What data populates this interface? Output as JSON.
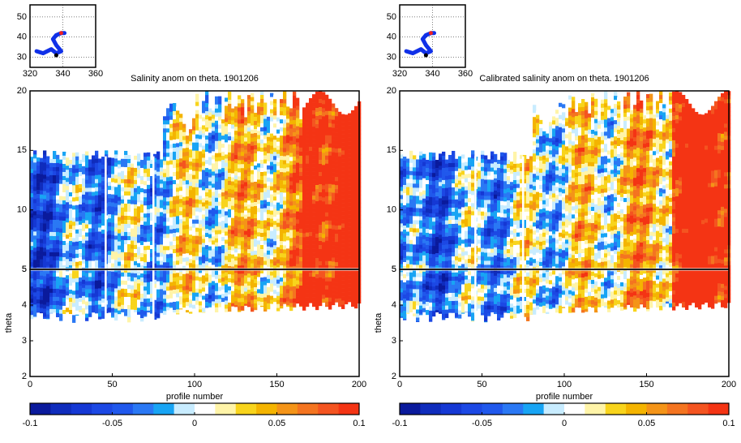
{
  "chart_data": [
    {
      "type": "contour",
      "title": "Salinity anom on theta.    1901206",
      "inset": {
        "xlim": [
          320,
          360
        ],
        "ylim": [
          25,
          56
        ],
        "xticks": [
          320,
          340,
          360
        ],
        "yticks": [
          30,
          40,
          50
        ]
      },
      "upper": {
        "xlim": [
          0,
          200
        ],
        "ylim": [
          5,
          20
        ],
        "yticks": [
          5,
          10,
          15,
          20
        ]
      },
      "lower": {
        "xlim": [
          0,
          200
        ],
        "ylim": [
          2,
          5
        ],
        "xticks": [
          0,
          50,
          100,
          150,
          200
        ],
        "yticks": [
          2,
          3,
          4,
          5
        ],
        "xlabel": "profile number",
        "ylabel": "theta"
      },
      "colorbar": {
        "lim": [
          -0.1,
          0.1
        ],
        "ticks": [
          -0.1,
          -0.05,
          0,
          0.05,
          0.1
        ],
        "colors": [
          "#0a1a9c",
          "#0f2cbc",
          "#1538d4",
          "#1c48e4",
          "#2058ec",
          "#2a78f4",
          "#18a4f4",
          "#c8ecff",
          "#ffffff",
          "#fff4a8",
          "#f8d41c",
          "#f4b400",
          "#f49418",
          "#f47420",
          "#f45420",
          "#f43414"
        ]
      }
    },
    {
      "type": "contour",
      "title": "Calibrated salinity anom on theta. 1901206",
      "inset": {
        "xlim": [
          320,
          360
        ],
        "ylim": [
          25,
          56
        ],
        "xticks": [
          320,
          340,
          360
        ],
        "yticks": [
          30,
          40,
          50
        ]
      },
      "upper": {
        "xlim": [
          0,
          200
        ],
        "ylim": [
          5,
          20
        ],
        "yticks": [
          5,
          10,
          15,
          20
        ]
      },
      "lower": {
        "xlim": [
          0,
          200
        ],
        "ylim": [
          2,
          5
        ],
        "xticks": [
          0,
          50,
          100,
          150,
          200
        ],
        "yticks": [
          2,
          3,
          4,
          5
        ],
        "xlabel": "profile number",
        "ylabel": "theta"
      },
      "colorbar": {
        "lim": [
          -0.1,
          0.1
        ],
        "ticks": [
          -0.1,
          -0.05,
          0,
          0.05,
          0.1
        ],
        "colors": [
          "#0a1a9c",
          "#0f2cbc",
          "#1538d4",
          "#1c48e4",
          "#2058ec",
          "#2a78f4",
          "#18a4f4",
          "#c8ecff",
          "#ffffff",
          "#fff4a8",
          "#f8d41c",
          "#f4b400",
          "#f49418",
          "#f47420",
          "#f45420",
          "#f43414"
        ]
      }
    }
  ]
}
